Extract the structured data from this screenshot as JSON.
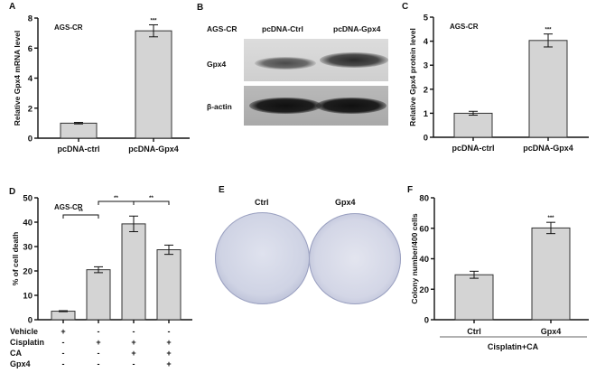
{
  "panels": {
    "A": {
      "label": "A",
      "cell_line": "AGS-CR"
    },
    "B": {
      "label": "B",
      "header": [
        "AGS-CR",
        "pcDNA-Ctrl",
        "pcDNA-Gpx4"
      ],
      "rows": [
        "Gpx4",
        "β-actin"
      ]
    },
    "C": {
      "label": "C",
      "cell_line": "AGS-CR"
    },
    "D": {
      "label": "D",
      "cell_line": "AGS-CR",
      "conditions": [
        {
          "name": "Vehicle",
          "values": [
            "+",
            "-",
            "-",
            "-"
          ]
        },
        {
          "name": "Cisplatin",
          "values": [
            "-",
            "+",
            "+",
            "+"
          ]
        },
        {
          "name": "CA",
          "values": [
            "-",
            "-",
            "+",
            "+"
          ]
        },
        {
          "name": "Gpx4",
          "values": [
            "-",
            "-",
            "-",
            "+"
          ]
        }
      ]
    },
    "E": {
      "label": "E",
      "dishes": [
        "Ctrl",
        "Gpx4"
      ]
    },
    "F": {
      "label": "F",
      "group_label": "Cisplatin+CA"
    }
  },
  "chart_data": [
    {
      "panel": "A",
      "type": "bar",
      "categories": [
        "pcDNA-ctrl",
        "pcDNA-Gpx4"
      ],
      "values": [
        1.0,
        7.15
      ],
      "errors": [
        0.05,
        0.4
      ],
      "significance": [
        "",
        "***"
      ],
      "ylabel": "Relative Gpx4 mRNA level",
      "ylim": [
        0,
        8
      ],
      "yticks": [
        0,
        2,
        4,
        6,
        8
      ],
      "annotation": "AGS-CR"
    },
    {
      "panel": "C",
      "type": "bar",
      "categories": [
        "pcDNA-ctrl",
        "pcDNA-Gpx4"
      ],
      "values": [
        1.0,
        4.03
      ],
      "errors": [
        0.08,
        0.27
      ],
      "significance": [
        "",
        "***"
      ],
      "ylabel": "Relative Gpx4 protein level",
      "ylim": [
        0,
        5
      ],
      "yticks": [
        0,
        1,
        2,
        3,
        4,
        5
      ],
      "annotation": "AGS-CR"
    },
    {
      "panel": "D",
      "type": "bar",
      "categories": [
        "Vehicle",
        "Cisplatin",
        "Cisplatin+CA",
        "Cisplatin+CA+Gpx4"
      ],
      "values": [
        3.5,
        20.5,
        39.3,
        28.7
      ],
      "errors": [
        0.2,
        1.2,
        3.2,
        1.9
      ],
      "comparisons": [
        {
          "from": 0,
          "to": 1,
          "label": "**"
        },
        {
          "from": 1,
          "to": 2,
          "label": "**"
        },
        {
          "from": 2,
          "to": 3,
          "label": "**"
        }
      ],
      "ylabel": "% of cell death",
      "ylim": [
        0,
        50
      ],
      "yticks": [
        0,
        10,
        20,
        30,
        40,
        50
      ],
      "annotation": "AGS-CR"
    },
    {
      "panel": "F",
      "type": "bar",
      "categories": [
        "Ctrl",
        "Gpx4"
      ],
      "values": [
        29.5,
        60.2
      ],
      "errors": [
        2.3,
        3.7
      ],
      "significance": [
        "",
        "***"
      ],
      "ylabel": "Colony number/400 cells",
      "xlabel": "Cisplatin+CA",
      "ylim": [
        0,
        80
      ],
      "yticks": [
        0,
        20,
        40,
        60,
        80
      ]
    }
  ]
}
